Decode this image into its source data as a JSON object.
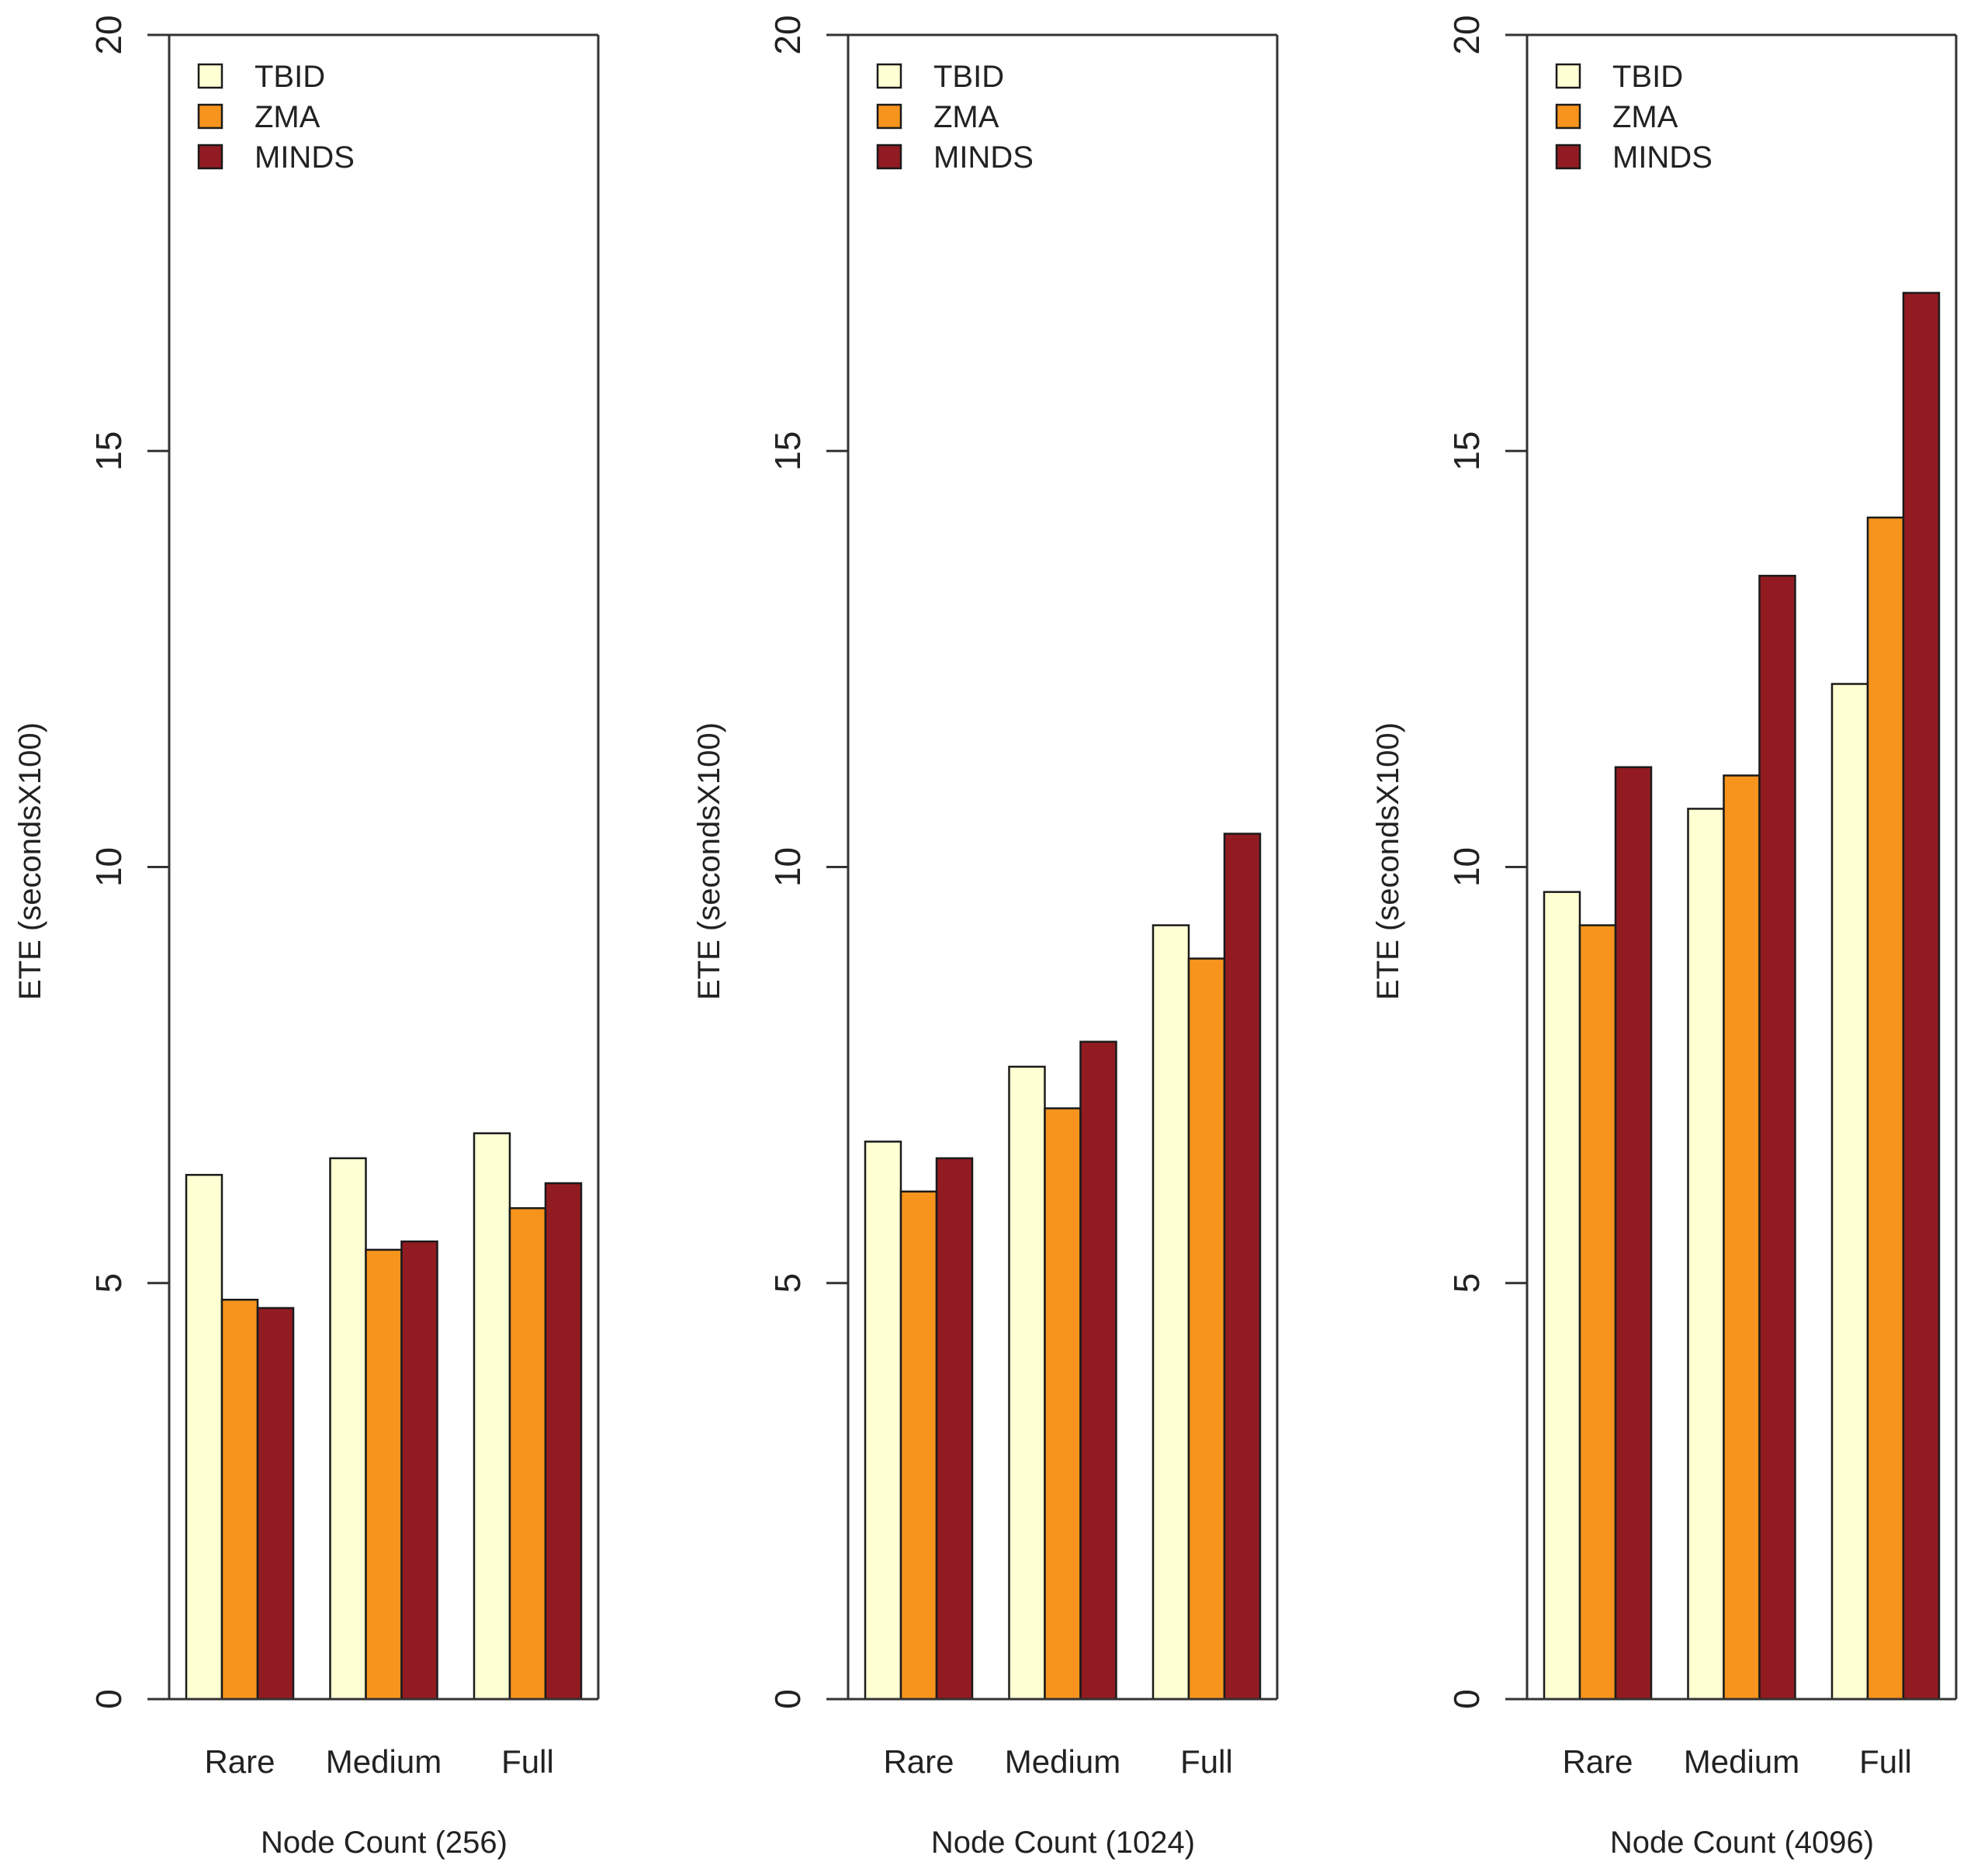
{
  "chart_data": [
    {
      "type": "bar",
      "xlabel": "Node Count (256)",
      "ylabel": "ETE (secondsX100)",
      "ylim": [
        0,
        20
      ],
      "yticks": [
        "0",
        "5",
        "10",
        "15",
        "20"
      ],
      "categories": [
        "Rare",
        "Medium",
        "Full"
      ],
      "series": [
        {
          "name": "TBID",
          "color": "#ffffd4",
          "values": [
            6.3,
            6.5,
            6.8
          ]
        },
        {
          "name": "ZMA",
          "color": "#f7941d",
          "values": [
            4.8,
            5.4,
            5.9
          ]
        },
        {
          "name": "MINDS",
          "color": "#921b22",
          "values": [
            4.7,
            5.5,
            6.2
          ]
        }
      ],
      "legend": "top-left"
    },
    {
      "type": "bar",
      "xlabel": "Node Count (1024)",
      "ylabel": "ETE (secondsX100)",
      "ylim": [
        0,
        20
      ],
      "yticks": [
        "0",
        "5",
        "10",
        "15",
        "20"
      ],
      "categories": [
        "Rare",
        "Medium",
        "Full"
      ],
      "series": [
        {
          "name": "TBID",
          "color": "#ffffd4",
          "values": [
            6.7,
            7.6,
            9.3
          ]
        },
        {
          "name": "ZMA",
          "color": "#f7941d",
          "values": [
            6.1,
            7.1,
            8.9
          ]
        },
        {
          "name": "MINDS",
          "color": "#921b22",
          "values": [
            6.5,
            7.9,
            10.4
          ]
        }
      ],
      "legend": "top-left"
    },
    {
      "type": "bar",
      "xlabel": "Node Count (4096)",
      "ylabel": "ETE (secondsX100)",
      "ylim": [
        0,
        20
      ],
      "yticks": [
        "0",
        "5",
        "10",
        "15",
        "20"
      ],
      "categories": [
        "Rare",
        "Medium",
        "Full"
      ],
      "series": [
        {
          "name": "TBID",
          "color": "#ffffd4",
          "values": [
            9.7,
            10.7,
            12.2
          ]
        },
        {
          "name": "ZMA",
          "color": "#f7941d",
          "values": [
            9.3,
            11.1,
            14.2
          ]
        },
        {
          "name": "MINDS",
          "color": "#921b22",
          "values": [
            11.2,
            13.5,
            16.9
          ]
        }
      ],
      "legend": "top-left"
    }
  ]
}
